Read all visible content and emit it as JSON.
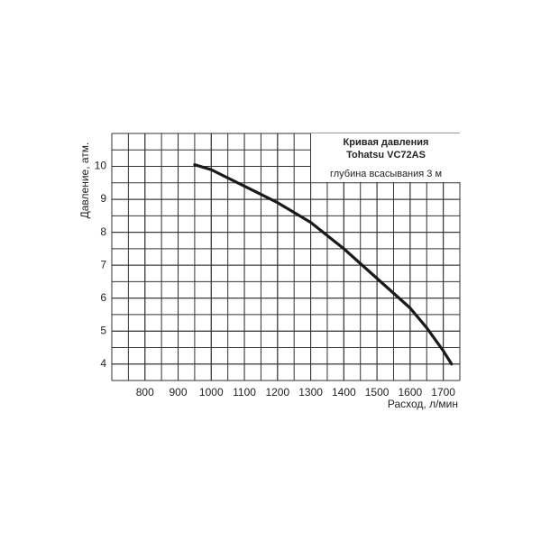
{
  "chart_data": {
    "type": "line",
    "title": "Кривая давления",
    "subtitle": "Tohatsu  VC72AS",
    "annotation": "глубина всасывания 3 м",
    "x_label": "Расход, л/мин",
    "y_label": "Давление, атм.",
    "series": [
      {
        "name": null,
        "color": "#1a1a1a",
        "x": [
          950,
          1000,
          1100,
          1200,
          1300,
          1400,
          1500,
          1600,
          1650,
          1700,
          1725
        ],
        "values": [
          10.05,
          9.9,
          9.4,
          8.9,
          8.3,
          7.5,
          6.6,
          5.7,
          5.1,
          4.4,
          4.0
        ]
      }
    ],
    "xlim": [
      700,
      1750
    ],
    "xticks": [
      800,
      900,
      1000,
      1100,
      1200,
      1300,
      1400,
      1500,
      1600,
      1700
    ],
    "ylim": [
      3.5,
      11
    ],
    "yticks": [
      4,
      5,
      6,
      7,
      8,
      9,
      10
    ],
    "grid": true
  }
}
